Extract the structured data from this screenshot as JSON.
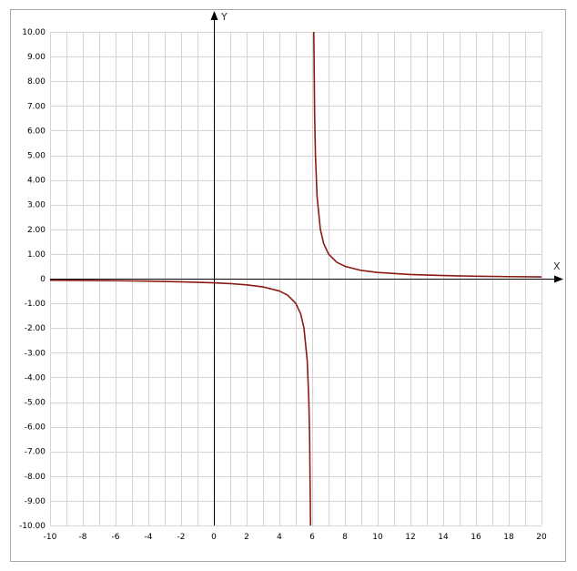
{
  "chart_data": {
    "type": "line",
    "title": "",
    "xlabel": "X",
    "ylabel": "Y",
    "xlim": [
      -10,
      20
    ],
    "ylim": [
      -10,
      10
    ],
    "grid": true,
    "x_ticks": [
      -10,
      -8,
      -6,
      -4,
      -2,
      0,
      2,
      4,
      6,
      8,
      10,
      12,
      14,
      16,
      18,
      20
    ],
    "x_tick_labels": [
      "-10",
      "-8",
      "-6",
      "-4",
      "-2",
      "0",
      "2",
      "4",
      "6",
      "8",
      "10",
      "12",
      "14",
      "16",
      "18",
      "20"
    ],
    "y_ticks": [
      10,
      9,
      8,
      7,
      6,
      5,
      4,
      3,
      2,
      1,
      0,
      -1,
      -2,
      -3,
      -4,
      -5,
      -6,
      -7,
      -8,
      -9,
      -10
    ],
    "y_tick_labels": [
      "10.00",
      "9.00",
      "8.00",
      "7.00",
      "6.00",
      "5.00",
      "4.00",
      "3.00",
      "2.00",
      "1.00",
      "0",
      "-1.00",
      "-2.00",
      "-3.00",
      "-4.00",
      "-5.00",
      "-6.00",
      "-7.00",
      "-8.00",
      "-9.00",
      "-10.00"
    ],
    "curve_color": "#8b1a12",
    "series": [
      {
        "branch": "left",
        "x": [
          -10,
          -8,
          -6,
          -4,
          -2,
          0,
          1,
          2,
          3,
          4,
          4.5,
          5,
          5.3,
          5.5,
          5.7,
          5.8,
          5.85,
          5.9
        ],
        "y": [
          -0.0625,
          -0.0714,
          -0.0833,
          -0.1,
          -0.125,
          -0.1667,
          -0.2,
          -0.25,
          -0.3333,
          -0.5,
          -0.6667,
          -1,
          -1.4286,
          -2,
          -3.3333,
          -5,
          -6.6667,
          -10
        ]
      },
      {
        "branch": "right",
        "x": [
          6.1,
          6.15,
          6.2,
          6.3,
          6.5,
          6.7,
          7,
          7.5,
          8,
          9,
          10,
          12,
          14,
          16,
          18,
          20
        ],
        "y": [
          10,
          6.6667,
          5,
          3.3333,
          2,
          1.4286,
          1,
          0.6667,
          0.5,
          0.3333,
          0.25,
          0.1667,
          0.125,
          0.1,
          0.0833,
          0.0714
        ]
      }
    ]
  }
}
